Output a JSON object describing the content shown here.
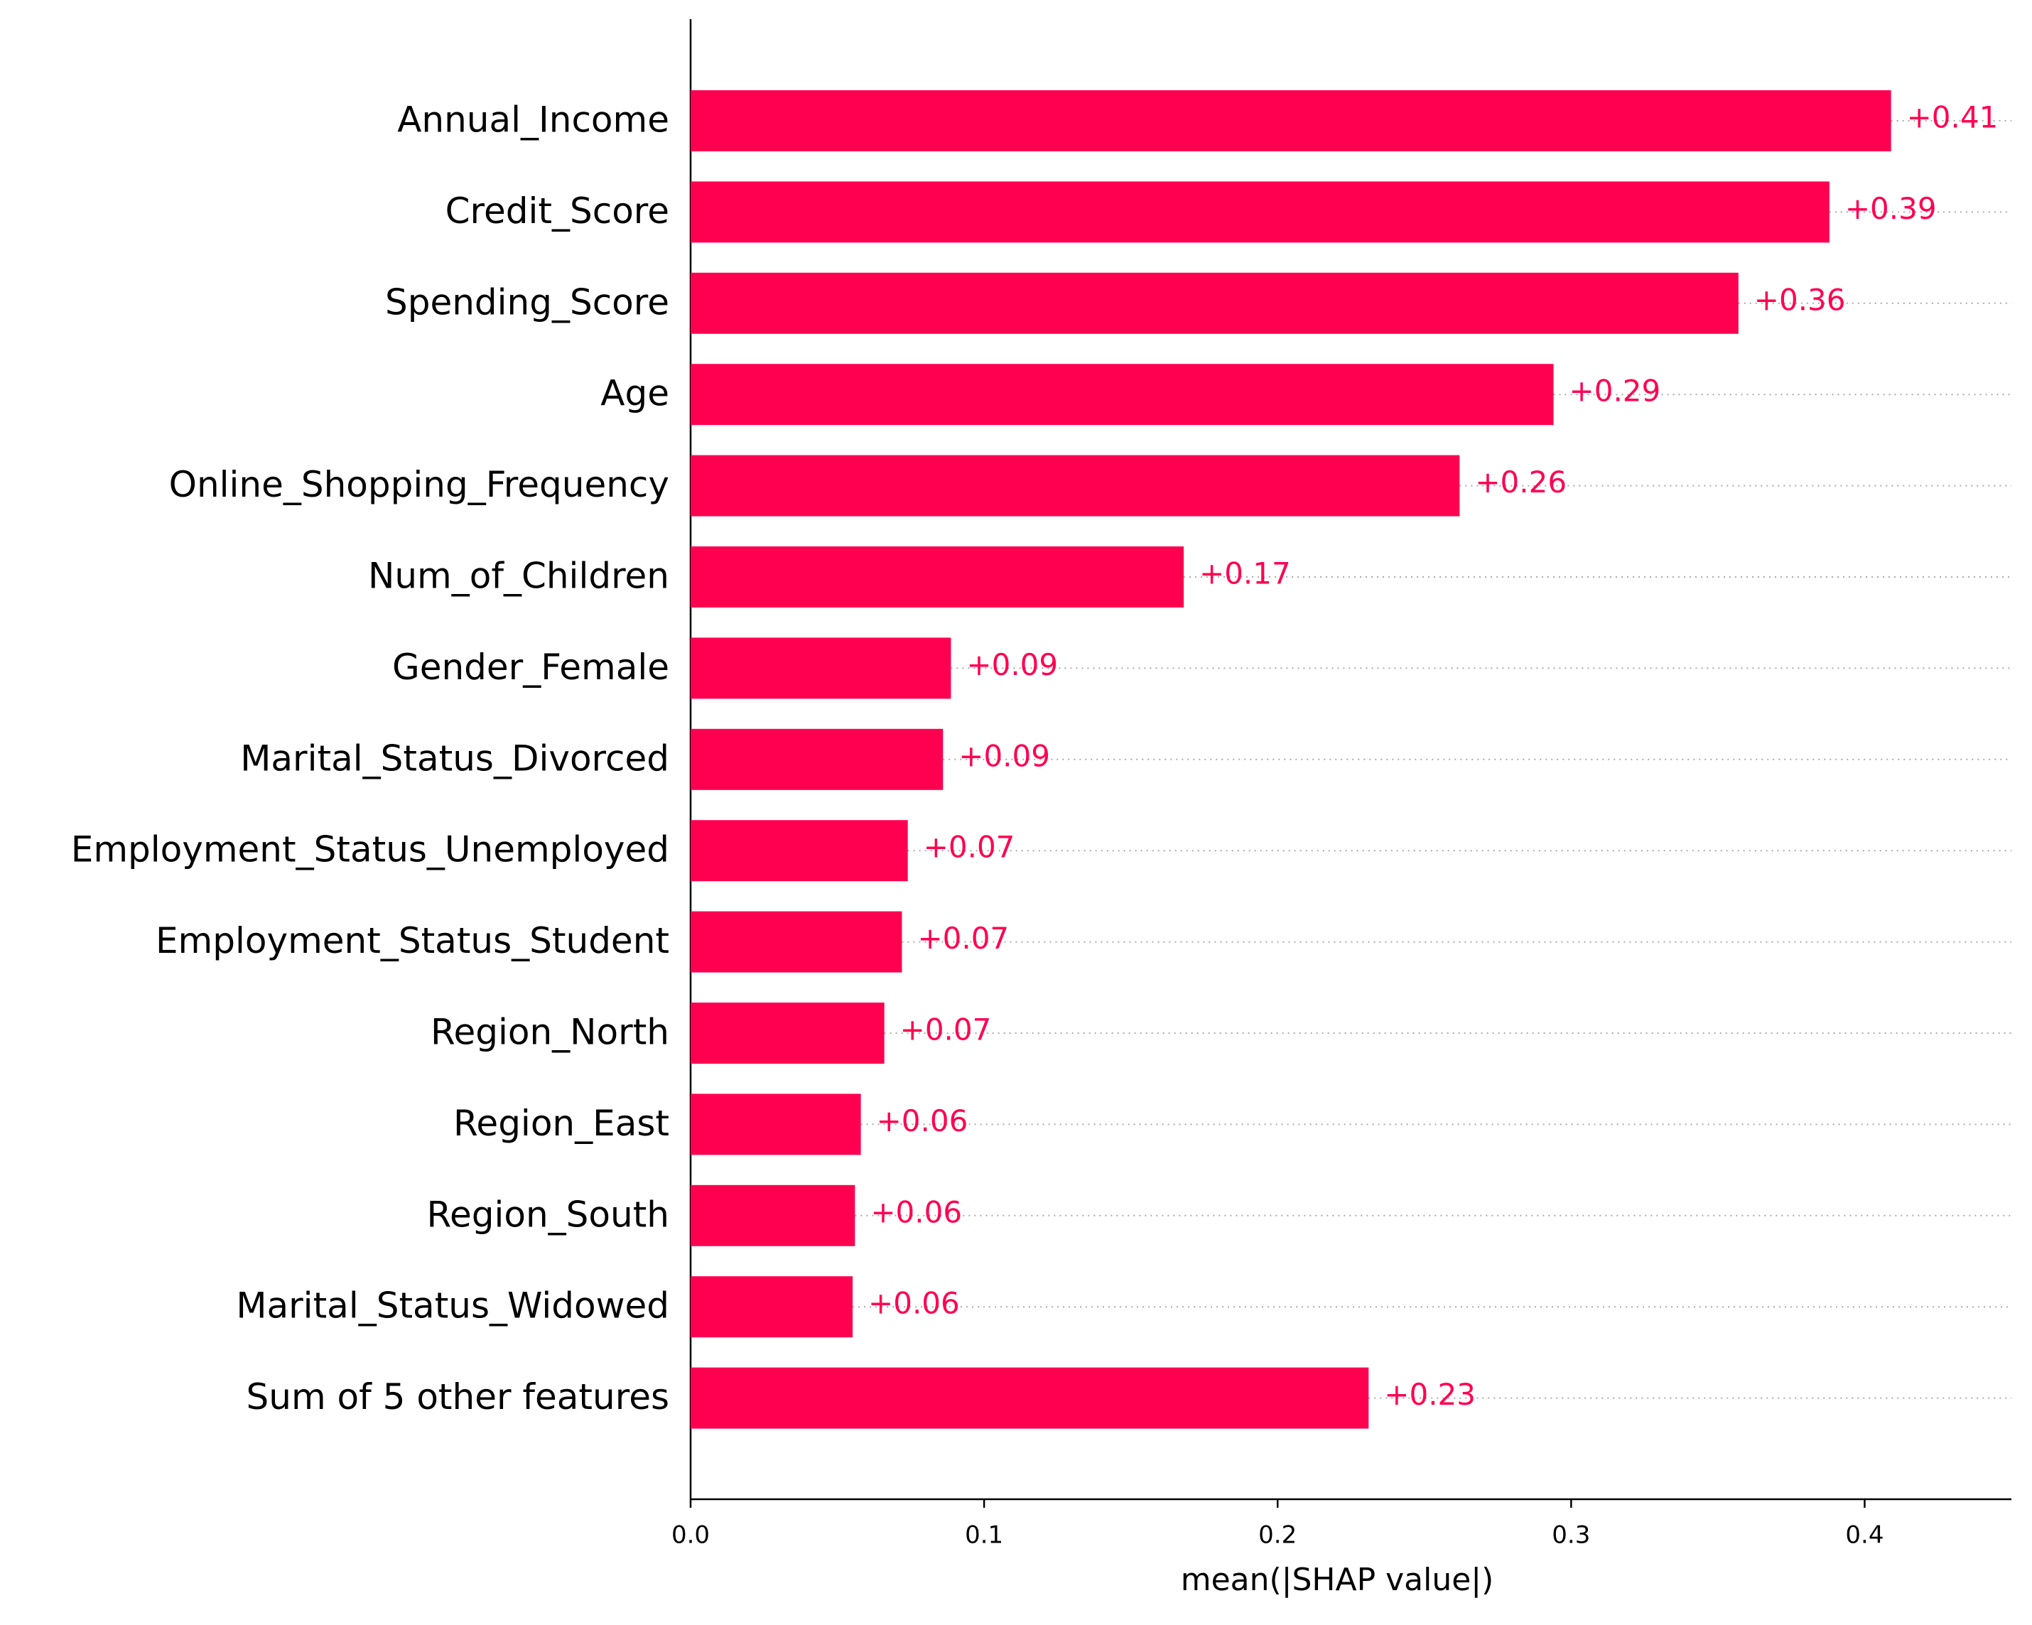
{
  "chart_data": {
    "type": "bar",
    "orientation": "horizontal",
    "categories": [
      "Annual_Income",
      "Credit_Score",
      "Spending_Score",
      "Age",
      "Online_Shopping_Frequency",
      "Num_of_Children",
      "Gender_Female",
      "Marital_Status_Divorced",
      "Employment_Status_Unemployed",
      "Employment_Status_Student",
      "Region_North",
      "Region_East",
      "Region_South",
      "Marital_Status_Widowed",
      "Sum of 5 other features"
    ],
    "values": [
      0.409,
      0.388,
      0.357,
      0.294,
      0.262,
      0.168,
      0.0887,
      0.086,
      0.074,
      0.072,
      0.066,
      0.058,
      0.056,
      0.0552,
      0.231
    ],
    "value_labels": [
      "+0.41",
      "+0.39",
      "+0.36",
      "+0.29",
      "+0.26",
      "+0.17",
      "+0.09",
      "+0.09",
      "+0.07",
      "+0.07",
      "+0.07",
      "+0.06",
      "+0.06",
      "+0.06",
      "+0.23"
    ],
    "color": "#ff0051",
    "xlim": [
      0,
      0.45
    ],
    "xticks": [
      {
        "value": 0,
        "label": "0.0"
      },
      0.1,
      0.2,
      0.3,
      0.4
    ],
    "xlabel": "mean(|SHAP value|)"
  }
}
